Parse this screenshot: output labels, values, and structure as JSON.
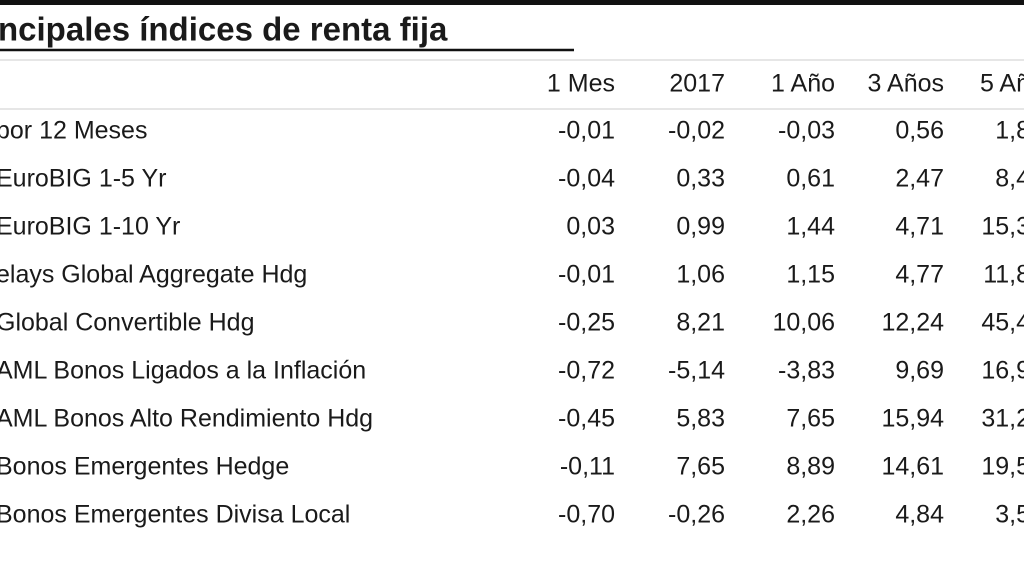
{
  "header": {
    "title": "ncipales índices de renta fija"
  },
  "table": {
    "columns": [
      "1 Mes",
      "2017",
      "1 Año",
      "3 Años",
      "5 Añ"
    ],
    "rows": [
      [
        "bor 12 Meses",
        "-0,01",
        "-0,02",
        "-0,03",
        "0,56",
        "1,8"
      ],
      [
        "EuroBIG 1-5 Yr",
        "-0,04",
        "0,33",
        "0,61",
        "2,47",
        "8,4"
      ],
      [
        "EuroBIG 1-10 Yr",
        "0,03",
        "0,99",
        "1,44",
        "4,71",
        "15,3"
      ],
      [
        "elays Global Aggregate Hdg",
        "-0,01",
        "1,06",
        "1,15",
        "4,77",
        "11,8"
      ],
      [
        "Global Convertible Hdg",
        "-0,25",
        "8,21",
        "10,06",
        "12,24",
        "45,4"
      ],
      [
        "AML Bonos Ligados a la Inflación",
        "-0,72",
        "-5,14",
        "-3,83",
        "9,69",
        "16,9"
      ],
      [
        "AML Bonos Alto Rendimiento Hdg",
        "-0,45",
        "5,83",
        "7,65",
        "15,94",
        "31,2"
      ],
      [
        "Bonos Emergentes Hedge",
        "-0,11",
        "7,65",
        "8,89",
        "14,61",
        "19,5"
      ],
      [
        "Bonos Emergentes Divisa Local",
        "-0,70",
        "-0,26",
        "2,26",
        "4,84",
        "3,5"
      ]
    ]
  }
}
